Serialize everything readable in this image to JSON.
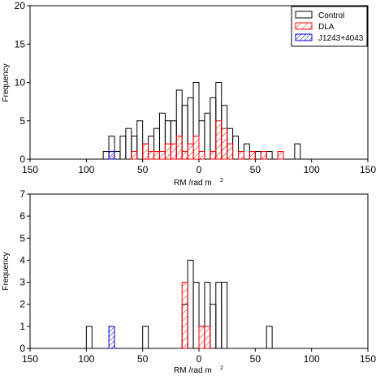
{
  "legend": [
    {
      "name": "Control",
      "color": "#000000",
      "pattern": "none"
    },
    {
      "name": "DLA",
      "color": "#ff0000",
      "pattern": "hatch"
    },
    {
      "name": "J1243+4043",
      "color": "#0000cc",
      "pattern": "hatch"
    }
  ],
  "chart_data": [
    {
      "type": "histogram",
      "bin_width": 5,
      "xlabel": "RM  /rad m",
      "xlabel_sup": "2",
      "ylabel": "Frequency",
      "xlim": [
        150,
        -150
      ],
      "ylim": [
        0,
        20
      ],
      "x_ticks": [
        150,
        100,
        50,
        0,
        50,
        100,
        150
      ],
      "x_tick_values": [
        150,
        100,
        50,
        0,
        -50,
        -100,
        -150
      ],
      "y_ticks": [
        0,
        5,
        10,
        15,
        20
      ],
      "legend_position": "top-right",
      "series": [
        {
          "name": "Control",
          "style": "outline",
          "color": "#000000",
          "bins": [
            [
              -90,
              -85,
              2
            ],
            [
              -75,
              -70,
              1
            ],
            [
              -65,
              -60,
              1
            ],
            [
              -55,
              -50,
              1
            ],
            [
              -50,
              -45,
              1
            ],
            [
              -45,
              -40,
              2
            ],
            [
              -40,
              -35,
              1
            ],
            [
              -35,
              -30,
              3
            ],
            [
              -30,
              -25,
              4
            ],
            [
              -25,
              -20,
              7
            ],
            [
              -20,
              -15,
              10
            ],
            [
              -15,
              -10,
              8
            ],
            [
              -10,
              -5,
              6
            ],
            [
              -5,
              0,
              5
            ],
            [
              0,
              5,
              10
            ],
            [
              5,
              10,
              8
            ],
            [
              10,
              15,
              7
            ],
            [
              15,
              20,
              9
            ],
            [
              20,
              25,
              5
            ],
            [
              25,
              30,
              5
            ],
            [
              30,
              35,
              6
            ],
            [
              35,
              40,
              4
            ],
            [
              40,
              45,
              3
            ],
            [
              45,
              50,
              2
            ],
            [
              50,
              55,
              5
            ],
            [
              55,
              60,
              3
            ],
            [
              60,
              65,
              4
            ],
            [
              65,
              70,
              3
            ],
            [
              70,
              75,
              1
            ],
            [
              75,
              80,
              3
            ],
            [
              80,
              85,
              1
            ]
          ]
        },
        {
          "name": "DLA",
          "style": "hatch",
          "color": "#ff0000",
          "bins": [
            [
              -75,
              -70,
              1
            ],
            [
              -60,
              -55,
              1
            ],
            [
              -50,
              -45,
              1
            ],
            [
              -40,
              -35,
              1
            ],
            [
              -30,
              -25,
              2
            ],
            [
              -25,
              -20,
              4
            ],
            [
              -20,
              -15,
              5
            ],
            [
              -15,
              -10,
              1
            ],
            [
              -5,
              0,
              1
            ],
            [
              0,
              5,
              3
            ],
            [
              5,
              10,
              2
            ],
            [
              10,
              15,
              1
            ],
            [
              15,
              20,
              3
            ],
            [
              20,
              25,
              2
            ],
            [
              25,
              30,
              2
            ],
            [
              30,
              35,
              1
            ],
            [
              35,
              40,
              1
            ],
            [
              40,
              45,
              1
            ],
            [
              45,
              50,
              2
            ],
            [
              55,
              60,
              1
            ],
            [
              75,
              80,
              1
            ]
          ]
        },
        {
          "name": "J1243+4043",
          "style": "hatch",
          "color": "#0000cc",
          "bins": [
            [
              75,
              80,
              1
            ]
          ]
        }
      ]
    },
    {
      "type": "histogram",
      "bin_width": 5,
      "xlabel": "RM  /rad m",
      "xlabel_sup": "2",
      "ylabel": "Frequency",
      "xlim": [
        150,
        -150
      ],
      "ylim": [
        0,
        7
      ],
      "x_ticks": [
        150,
        100,
        50,
        0,
        50,
        100,
        150
      ],
      "x_tick_values": [
        150,
        100,
        50,
        0,
        -50,
        -100,
        -150
      ],
      "y_ticks": [
        0,
        1,
        2,
        3,
        4,
        5,
        6,
        7
      ],
      "series": [
        {
          "name": "Control",
          "style": "outline",
          "color": "#000000",
          "bins": [
            [
              -65,
              -60,
              1
            ],
            [
              -25,
              -20,
              3
            ],
            [
              -20,
              -15,
              3
            ],
            [
              -15,
              -10,
              2
            ],
            [
              -10,
              -5,
              3
            ],
            [
              -5,
              0,
              1
            ],
            [
              0,
              5,
              3
            ],
            [
              5,
              10,
              4
            ],
            [
              10,
              15,
              2
            ],
            [
              45,
              50,
              1
            ],
            [
              95,
              100,
              1
            ]
          ]
        },
        {
          "name": "DLA",
          "style": "hatch",
          "color": "#ff0000",
          "bins": [
            [
              -10,
              -5,
              1
            ],
            [
              -5,
              0,
              1
            ],
            [
              10,
              15,
              3
            ]
          ]
        },
        {
          "name": "J1243+4043",
          "style": "hatch",
          "color": "#0000cc",
          "bins": [
            [
              75,
              80,
              1
            ]
          ]
        }
      ]
    }
  ]
}
